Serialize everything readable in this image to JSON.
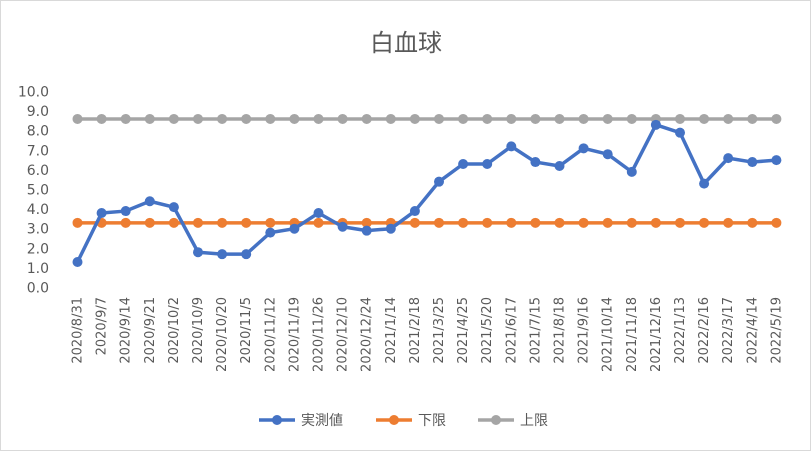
{
  "chart_data": {
    "type": "line",
    "title": "白血球",
    "xlabel": "",
    "ylabel": "",
    "ylim": [
      0,
      10
    ],
    "yticks": [
      "0.0",
      "1.0",
      "2.0",
      "3.0",
      "4.0",
      "5.0",
      "6.0",
      "7.0",
      "8.0",
      "9.0",
      "10.0"
    ],
    "grid": false,
    "legend_position": "bottom",
    "categories": [
      "2020/8/31",
      "2020/9/7",
      "2020/9/14",
      "2020/9/21",
      "2020/10/2",
      "2020/10/9",
      "2020/10/20",
      "2020/11/5",
      "2020/11/12",
      "2020/11/19",
      "2020/11/26",
      "2020/12/10",
      "2020/12/24",
      "2021/1/14",
      "2021/2/18",
      "2021/3/25",
      "2021/4/25",
      "2021/5/20",
      "2021/6/17",
      "2021/7/15",
      "2021/8/18",
      "2021/9/16",
      "2021/10/14",
      "2021/11/18",
      "2021/12/16",
      "2022/1/13",
      "2022/2/16",
      "2022/3/17",
      "2022/4/14",
      "2022/5/19"
    ],
    "series": [
      {
        "name": "実測値",
        "color": "#4472c4",
        "values": [
          1.3,
          3.8,
          3.9,
          4.4,
          4.1,
          1.8,
          1.7,
          1.7,
          2.8,
          3.0,
          3.8,
          3.1,
          2.9,
          3.0,
          3.9,
          5.4,
          6.3,
          6.3,
          7.2,
          6.4,
          6.2,
          7.1,
          6.8,
          5.9,
          8.3,
          7.9,
          5.3,
          6.6,
          6.4,
          6.5
        ]
      },
      {
        "name": "下限",
        "color": "#ed7d31",
        "values": [
          3.3,
          3.3,
          3.3,
          3.3,
          3.3,
          3.3,
          3.3,
          3.3,
          3.3,
          3.3,
          3.3,
          3.3,
          3.3,
          3.3,
          3.3,
          3.3,
          3.3,
          3.3,
          3.3,
          3.3,
          3.3,
          3.3,
          3.3,
          3.3,
          3.3,
          3.3,
          3.3,
          3.3,
          3.3,
          3.3
        ]
      },
      {
        "name": "上限",
        "color": "#a5a5a5",
        "values": [
          8.6,
          8.6,
          8.6,
          8.6,
          8.6,
          8.6,
          8.6,
          8.6,
          8.6,
          8.6,
          8.6,
          8.6,
          8.6,
          8.6,
          8.6,
          8.6,
          8.6,
          8.6,
          8.6,
          8.6,
          8.6,
          8.6,
          8.6,
          8.6,
          8.6,
          8.6,
          8.6,
          8.6,
          8.6,
          8.6
        ]
      }
    ],
    "draw_order": [
      "上限",
      "下限",
      "実測値"
    ]
  }
}
